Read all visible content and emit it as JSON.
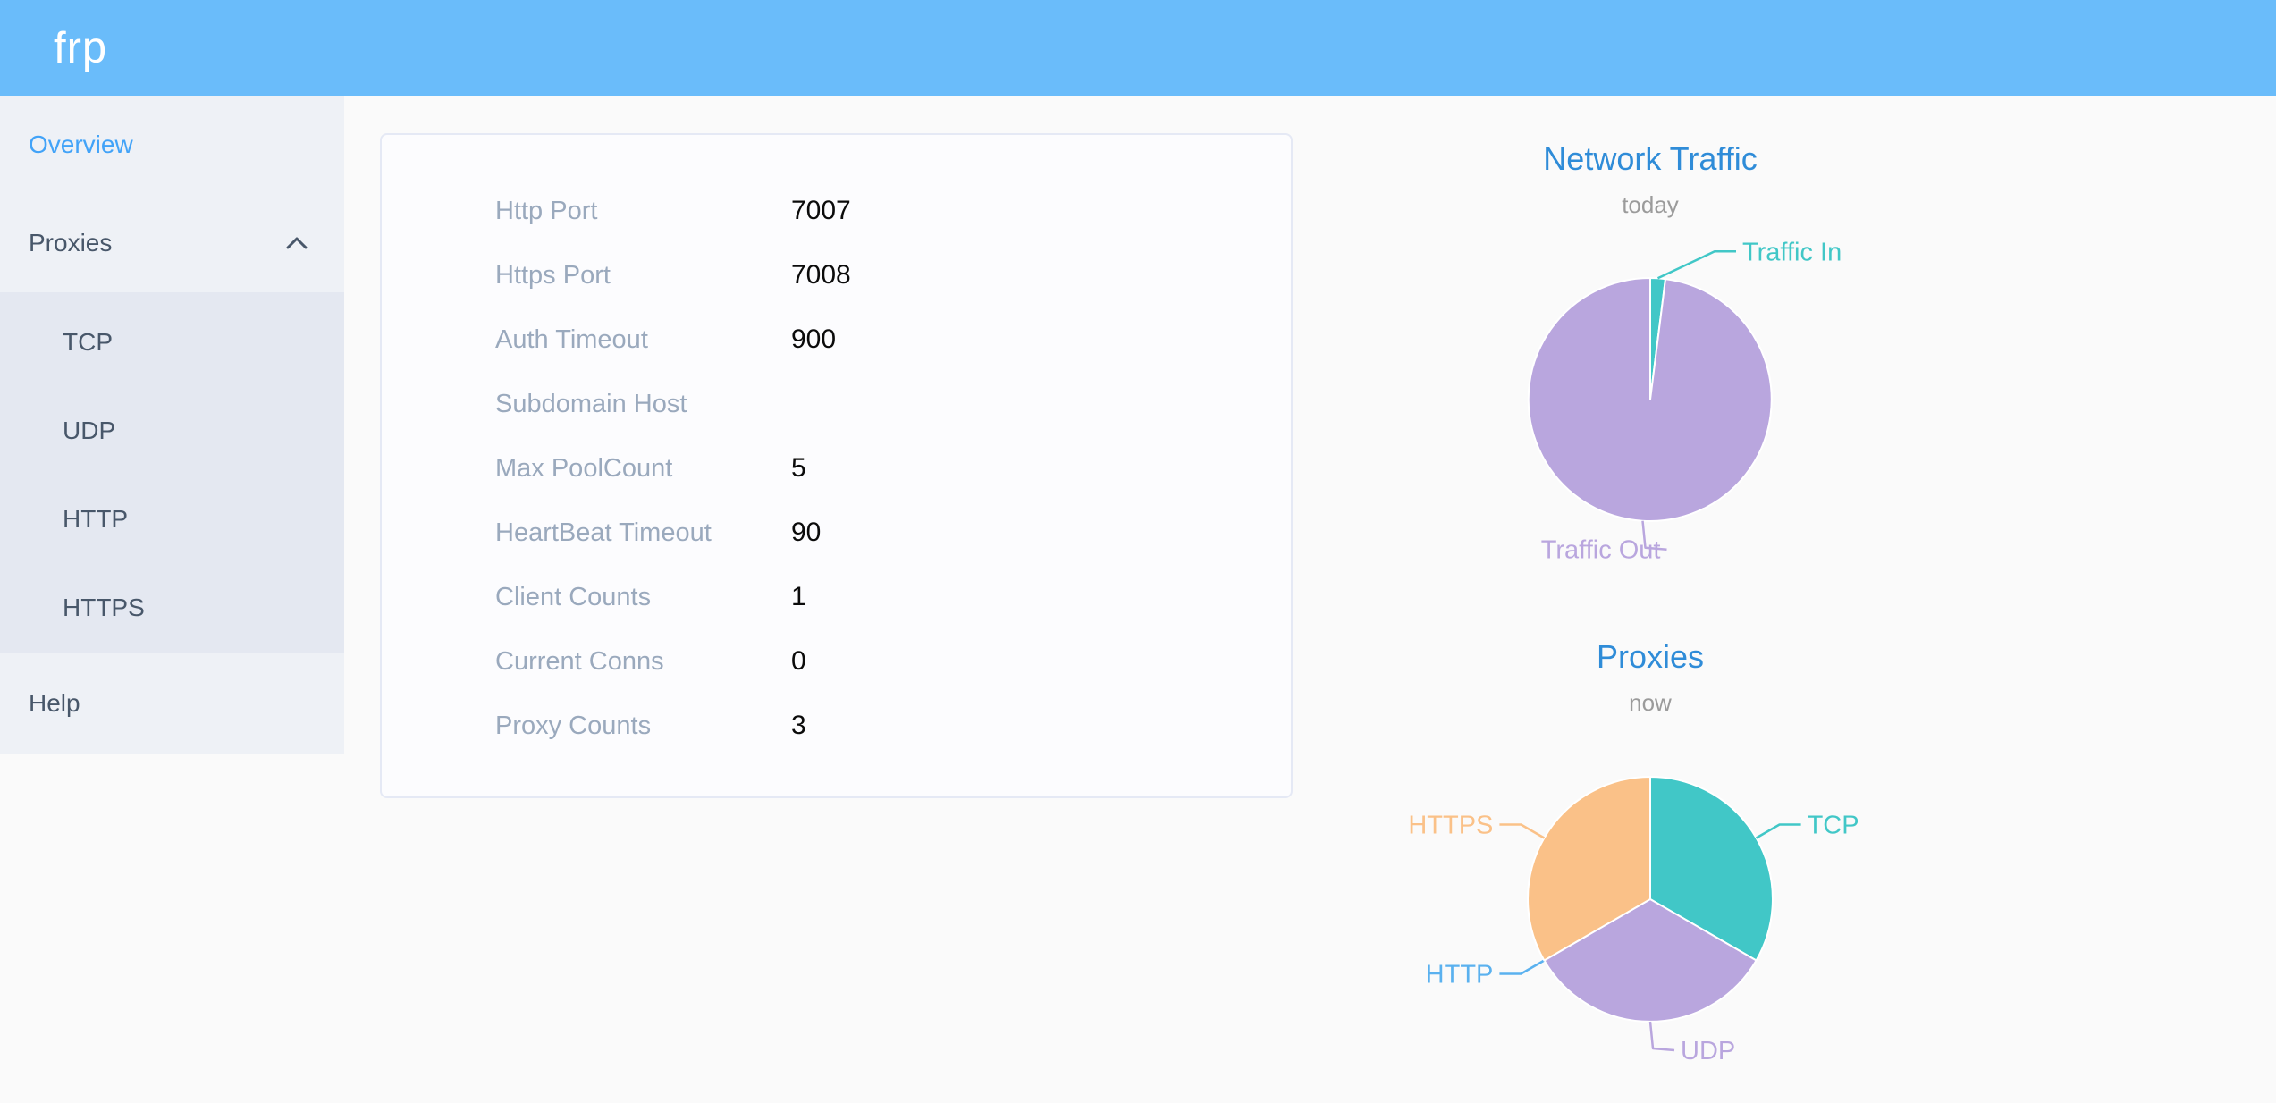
{
  "header": {
    "logo": "frp"
  },
  "sidebar": {
    "items": [
      {
        "id": "overview",
        "label": "Overview",
        "active": true
      },
      {
        "id": "proxies",
        "label": "Proxies",
        "expanded": true,
        "chevron_icon": "chevron-up",
        "children": [
          {
            "id": "tcp",
            "label": "TCP"
          },
          {
            "id": "udp",
            "label": "UDP"
          },
          {
            "id": "http",
            "label": "HTTP"
          },
          {
            "id": "https",
            "label": "HTTPS"
          }
        ]
      },
      {
        "id": "help",
        "label": "Help"
      }
    ]
  },
  "server_info": {
    "rows": [
      {
        "label": "Http Port",
        "value": "7007"
      },
      {
        "label": "Https Port",
        "value": "7008"
      },
      {
        "label": "Auth Timeout",
        "value": "900"
      },
      {
        "label": "Subdomain Host",
        "value": ""
      },
      {
        "label": "Max PoolCount",
        "value": "5"
      },
      {
        "label": "HeartBeat Timeout",
        "value": "90"
      },
      {
        "label": "Client Counts",
        "value": "1"
      },
      {
        "label": "Current Conns",
        "value": "0"
      },
      {
        "label": "Proxy Counts",
        "value": "3"
      }
    ]
  },
  "chart_data": [
    {
      "type": "pie",
      "title": "Network Traffic",
      "subtitle": "today",
      "legend_position": "none",
      "value_unit": "percent_share",
      "series": [
        {
          "name": "Traffic In",
          "value": 2,
          "color": "#41c7c7"
        },
        {
          "name": "Traffic Out",
          "value": 98,
          "color": "#b9a6de"
        }
      ]
    },
    {
      "type": "pie",
      "title": "Proxies",
      "subtitle": "now",
      "legend_position": "none",
      "value_unit": "count",
      "series": [
        {
          "name": "TCP",
          "value": 1,
          "color": "#41c7c7"
        },
        {
          "name": "UDP",
          "value": 1,
          "color": "#b9a6de"
        },
        {
          "name": "HTTP",
          "value": 0,
          "color": "#5ab1ef"
        },
        {
          "name": "HTTPS",
          "value": 1,
          "color": "#fac188"
        }
      ]
    }
  ],
  "colors": {
    "header_bg": "#6abcfa",
    "page_bg": "#fafafa",
    "sidebar_bg": "#eef1f6",
    "submenu_bg": "#e4e8f1",
    "menu_text": "#48576a",
    "menu_active": "#42a3f8",
    "card_bg": "#fcfcfe",
    "card_border": "#e5e9f5",
    "label_color": "#9aa9bd",
    "value_color": "#0b0b0b",
    "chart_title": "#2f8cd8",
    "chart_sub": "#9b9b9b"
  }
}
